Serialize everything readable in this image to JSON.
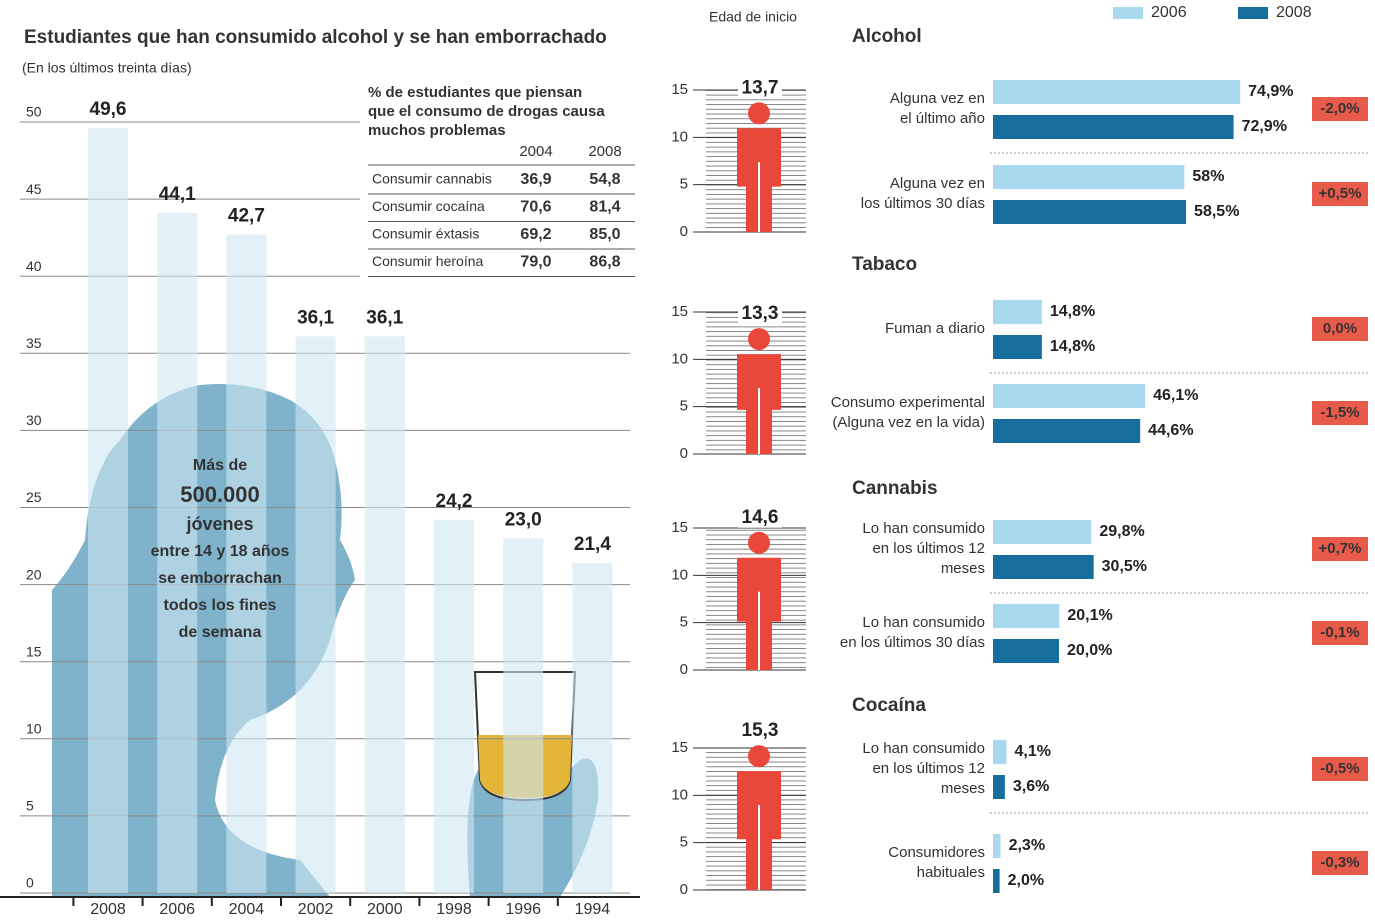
{
  "chart_data": [
    {
      "type": "bar",
      "title": "Estudiantes que han consumido alcohol y se han emborrachado",
      "subtitle": "(En los últimos treinta días)",
      "categories": [
        "2008",
        "2006",
        "2004",
        "2002",
        "2000",
        "1998",
        "1996",
        "1994"
      ],
      "values": [
        49.6,
        44.1,
        42.7,
        36.1,
        36.1,
        24.2,
        23.0,
        21.4
      ],
      "value_labels": [
        "49,6",
        "44,1",
        "42,7",
        "36,1",
        "36,1",
        "24,2",
        "23,0",
        "21,4"
      ],
      "ylim": [
        0,
        50
      ],
      "yticks": [
        0,
        5,
        10,
        15,
        20,
        25,
        30,
        35,
        40,
        45,
        50
      ],
      "grid": true,
      "color": "#cfe6f2",
      "annotation": [
        "Más de",
        "500.000",
        "jóvenes",
        "entre 14 y 18 años",
        "se emborrachan",
        "todos los fines",
        "de semana"
      ]
    },
    {
      "type": "pictogram",
      "title": "Edad de inicio",
      "values": [
        13.7,
        13.3,
        14.6,
        15.3
      ],
      "value_labels": [
        "13,7",
        "13,3",
        "14,6",
        "15,3"
      ],
      "ylim": [
        0,
        15
      ],
      "yticks": [
        0,
        5,
        10,
        15
      ],
      "color": "#e8473a"
    },
    {
      "type": "hbar",
      "series": [
        {
          "name": "2006",
          "color": "#a9d9ef"
        },
        {
          "name": "2008",
          "color": "#156e9b"
        }
      ],
      "xlim": [
        0,
        100
      ],
      "groups": [
        {
          "name": "Alcohol",
          "categories": [
            [
              "Alguna vez en",
              "el último año"
            ],
            [
              "Alguna vez en",
              "los últimos 30 días"
            ]
          ],
          "values": [
            [
              74.9,
              72.9
            ],
            [
              58,
              58.5
            ]
          ],
          "value_labels": [
            [
              "74,9%",
              "72,9%"
            ],
            [
              "58%",
              "58,5%"
            ]
          ],
          "changes": [
            "-2,0%",
            "+0,5%"
          ]
        },
        {
          "name": "Tabaco",
          "categories": [
            [
              "Fuman a diario"
            ],
            [
              "Consumo experimental",
              "(Alguna vez en la vida)"
            ]
          ],
          "values": [
            [
              14.8,
              14.8
            ],
            [
              46.1,
              44.6
            ]
          ],
          "value_labels": [
            [
              "14,8%",
              "14,8%"
            ],
            [
              "46,1%",
              "44,6%"
            ]
          ],
          "changes": [
            "0,0%",
            "-1,5%"
          ]
        },
        {
          "name": "Cannabis",
          "categories": [
            [
              "Lo han consumido",
              "en los últimos 12",
              "meses"
            ],
            [
              "Lo han consumido",
              "en los últimos 30 días"
            ]
          ],
          "values": [
            [
              29.8,
              30.5
            ],
            [
              20.1,
              20.0
            ]
          ],
          "value_labels": [
            [
              "29,8%",
              "30,5%"
            ],
            [
              "20,1%",
              "20,0%"
            ]
          ],
          "changes": [
            "+0,7%",
            "-0,1%"
          ]
        },
        {
          "name": "Cocaína",
          "categories": [
            [
              "Lo han consumido",
              "en los últimos 12",
              "meses"
            ],
            [
              "Consumidores",
              "habituales"
            ]
          ],
          "values": [
            [
              4.1,
              3.6
            ],
            [
              2.3,
              2.0
            ]
          ],
          "value_labels": [
            [
              "4,1%",
              "3,6%"
            ],
            [
              "2,3%",
              "2,0%"
            ]
          ],
          "changes": [
            "-0,5%",
            "-0,3%"
          ]
        }
      ]
    }
  ],
  "table": {
    "title": [
      "% de estudiantes que piensan",
      "que el consumo de drogas causa",
      "muchos problemas"
    ],
    "columns": [
      "2004",
      "2008"
    ],
    "rows": [
      [
        "Consumir cannabis",
        "36,9",
        "54,8"
      ],
      [
        "Consumir cocaína",
        "70,6",
        "81,4"
      ],
      [
        "Consumir éxtasis",
        "69,2",
        "85,0"
      ],
      [
        "Consumir heroína",
        "79,0",
        "86,8"
      ]
    ]
  }
}
